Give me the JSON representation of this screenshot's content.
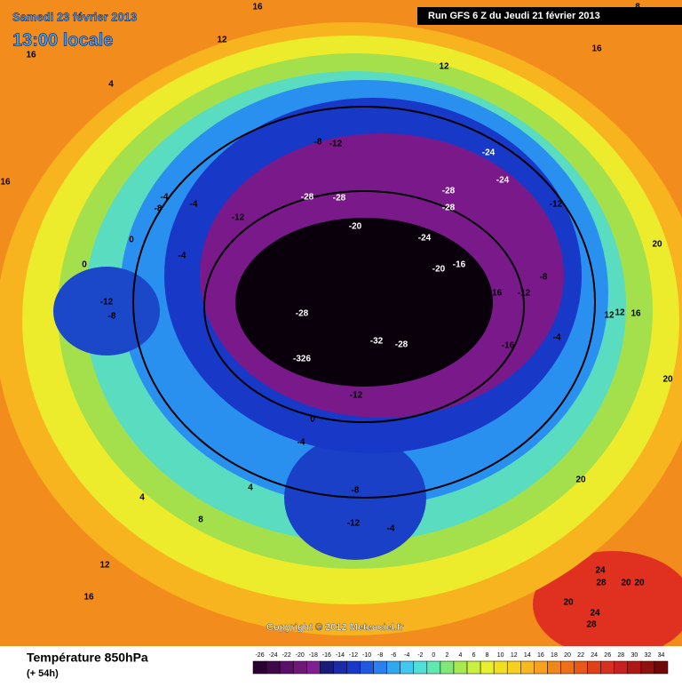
{
  "header": {
    "date": "Samedi 23 février 2013",
    "time": "13:00 locale",
    "run": "Run GFS 6 Z du Jeudi 21 février 2013"
  },
  "map": {
    "labels": [
      "12",
      "16",
      "4",
      "16",
      "16",
      "16",
      "12",
      "8",
      "-8",
      "-12",
      "-24",
      "-24",
      "-28",
      "-28",
      "-20",
      "-28",
      "-28",
      "-12",
      "-4",
      "-8",
      "-4",
      "-4",
      "0",
      "0",
      "-12",
      "-8",
      "-28",
      "-32",
      "-28",
      "-326",
      "-24",
      "-20",
      "-16",
      "-16",
      "-12",
      "-12",
      "-16",
      "-8",
      "-4",
      "-12",
      "0",
      "-4",
      "-8",
      "-12",
      "-4",
      "4",
      "4",
      "8",
      "12",
      "16",
      "20",
      "20",
      "12",
      "12",
      "16",
      "20",
      "20",
      "24",
      "28",
      "20",
      "20",
      "28",
      "24"
    ],
    "copyright": "Copyright © 2012 Meteociel.fr"
  },
  "footer": {
    "title": "Température 850hPa",
    "subtitle": "(+ 54h)"
  },
  "legend": {
    "ticks": [
      -26,
      -24,
      -22,
      -20,
      -18,
      -16,
      -14,
      -12,
      -10,
      -8,
      -6,
      -4,
      -2,
      0,
      2,
      4,
      6,
      8,
      10,
      12,
      14,
      16,
      18,
      20,
      22,
      24,
      26,
      28,
      30,
      32,
      34
    ],
    "colors": [
      "#2a0030",
      "#400848",
      "#5a1068",
      "#701878",
      "#802090",
      "#1a1a78",
      "#1a2aa8",
      "#1838c8",
      "#2058e0",
      "#2a80f0",
      "#30a8f0",
      "#40c8f0",
      "#50e0d8",
      "#60e8b0",
      "#80e878",
      "#a8e850",
      "#c8f040",
      "#e8f030",
      "#f0e020",
      "#f8d020",
      "#f8b820",
      "#f8a020",
      "#f08818",
      "#f07018",
      "#e85818",
      "#e04018",
      "#d83020",
      "#c82020",
      "#b01818",
      "#901010",
      "#700808"
    ]
  }
}
